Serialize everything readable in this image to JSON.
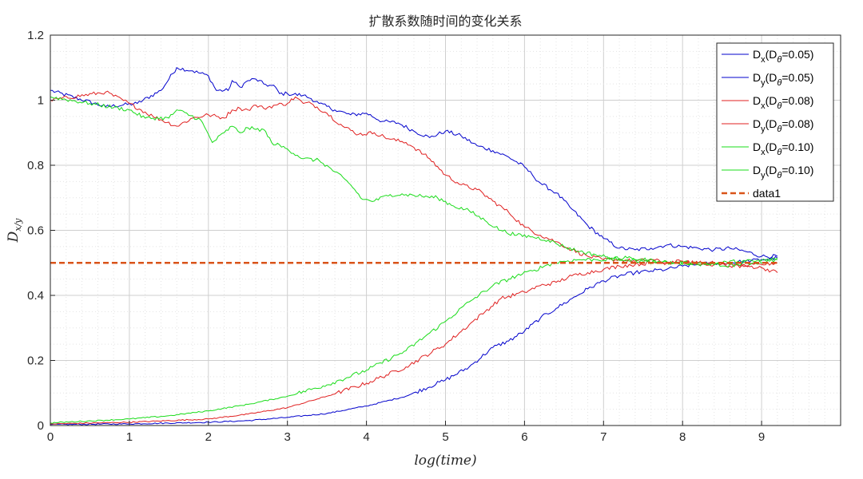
{
  "chart_data": {
    "type": "line",
    "title": "扩散系数随时间的变化关系",
    "xlabel": "log(time)",
    "ylabel": "D_{x/y}",
    "xlim": [
      0,
      10
    ],
    "ylim": [
      0,
      1.2
    ],
    "xticks": [
      0,
      1,
      2,
      3,
      4,
      5,
      6,
      7,
      8,
      9
    ],
    "yticks": [
      0,
      0.2,
      0.4,
      0.6,
      0.8,
      1,
      1.2
    ],
    "ytick_labels": [
      "0",
      "0.2",
      "0.4",
      "0.6",
      "0.8",
      "1",
      "1.2"
    ],
    "grid": true,
    "minor_grid": true,
    "legend_position": "top-right",
    "series": [
      {
        "name": "Dx(Dθ=0.05)",
        "label_main": "D",
        "label_sub": "x",
        "label_paren": "(D",
        "label_sub2": "θ",
        "label_rest": "=0.05)",
        "color": "#0000cc",
        "points": [
          [
            0,
            1.03
          ],
          [
            0.7,
            0.98
          ],
          [
            1.1,
            0.99
          ],
          [
            1.4,
            1.03
          ],
          [
            1.6,
            1.1
          ],
          [
            1.8,
            1.09
          ],
          [
            2.0,
            1.075
          ],
          [
            2.1,
            1.03
          ],
          [
            2.25,
            1.03
          ],
          [
            2.3,
            1.06
          ],
          [
            2.4,
            1.04
          ],
          [
            2.5,
            1.06
          ],
          [
            2.6,
            1.065
          ],
          [
            2.7,
            1.05
          ],
          [
            2.85,
            1.04
          ],
          [
            2.9,
            1.02
          ],
          [
            3.0,
            1.02
          ],
          [
            3.2,
            1.015
          ],
          [
            3.3,
            1.005
          ],
          [
            3.4,
            0.99
          ],
          [
            3.6,
            0.97
          ],
          [
            3.8,
            0.955
          ],
          [
            4.0,
            0.96
          ],
          [
            4.2,
            0.935
          ],
          [
            4.4,
            0.93
          ],
          [
            4.6,
            0.905
          ],
          [
            4.8,
            0.885
          ],
          [
            5.0,
            0.905
          ],
          [
            5.2,
            0.89
          ],
          [
            5.4,
            0.86
          ],
          [
            5.6,
            0.845
          ],
          [
            5.8,
            0.825
          ],
          [
            6.0,
            0.795
          ],
          [
            6.1,
            0.77
          ],
          [
            6.2,
            0.745
          ],
          [
            6.4,
            0.715
          ],
          [
            6.6,
            0.665
          ],
          [
            6.8,
            0.615
          ],
          [
            7.0,
            0.575
          ],
          [
            7.2,
            0.545
          ],
          [
            7.4,
            0.54
          ],
          [
            7.6,
            0.545
          ],
          [
            7.8,
            0.555
          ],
          [
            8.0,
            0.55
          ],
          [
            8.2,
            0.545
          ],
          [
            8.4,
            0.54
          ],
          [
            8.6,
            0.545
          ],
          [
            8.8,
            0.535
          ],
          [
            9.0,
            0.52
          ],
          [
            9.2,
            0.52
          ]
        ]
      },
      {
        "name": "Dy(Dθ=0.05)",
        "label_main": "D",
        "label_sub": "y",
        "label_paren": "(D",
        "label_sub2": "θ",
        "label_rest": "=0.05)",
        "color": "#0000cc",
        "points": [
          [
            0,
            0.003
          ],
          [
            1,
            0.005
          ],
          [
            2,
            0.01
          ],
          [
            2.5,
            0.015
          ],
          [
            3,
            0.025
          ],
          [
            3.5,
            0.037
          ],
          [
            4,
            0.06
          ],
          [
            4.5,
            0.09
          ],
          [
            5,
            0.14
          ],
          [
            5.3,
            0.18
          ],
          [
            5.6,
            0.24
          ],
          [
            5.8,
            0.26
          ],
          [
            6.0,
            0.29
          ],
          [
            6.2,
            0.33
          ],
          [
            6.4,
            0.36
          ],
          [
            6.6,
            0.39
          ],
          [
            6.8,
            0.42
          ],
          [
            7.0,
            0.445
          ],
          [
            7.2,
            0.46
          ],
          [
            7.4,
            0.47
          ],
          [
            7.6,
            0.475
          ],
          [
            7.8,
            0.48
          ],
          [
            8.0,
            0.49
          ],
          [
            8.2,
            0.495
          ],
          [
            8.4,
            0.5
          ],
          [
            8.6,
            0.5
          ],
          [
            8.8,
            0.505
          ],
          [
            9.0,
            0.51
          ],
          [
            9.2,
            0.515
          ]
        ]
      },
      {
        "name": "Dx(Dθ=0.08)",
        "label_main": "D",
        "label_sub": "x",
        "label_paren": "(D",
        "label_sub2": "θ",
        "label_rest": "=0.08)",
        "color": "#e02020",
        "points": [
          [
            0,
            1.0
          ],
          [
            0.7,
            1.025
          ],
          [
            1.0,
            0.99
          ],
          [
            1.3,
            0.95
          ],
          [
            1.6,
            0.92
          ],
          [
            1.8,
            0.945
          ],
          [
            2.0,
            0.955
          ],
          [
            2.2,
            0.945
          ],
          [
            2.3,
            0.97
          ],
          [
            2.4,
            0.975
          ],
          [
            2.5,
            0.97
          ],
          [
            2.6,
            0.985
          ],
          [
            2.7,
            0.975
          ],
          [
            2.85,
            0.985
          ],
          [
            3.0,
            0.99
          ],
          [
            3.1,
            1.01
          ],
          [
            3.2,
            0.99
          ],
          [
            3.3,
            0.99
          ],
          [
            3.5,
            0.96
          ],
          [
            3.7,
            0.92
          ],
          [
            3.9,
            0.895
          ],
          [
            4.1,
            0.9
          ],
          [
            4.3,
            0.88
          ],
          [
            4.5,
            0.87
          ],
          [
            4.6,
            0.855
          ],
          [
            4.8,
            0.82
          ],
          [
            5.0,
            0.77
          ],
          [
            5.2,
            0.74
          ],
          [
            5.4,
            0.725
          ],
          [
            5.6,
            0.69
          ],
          [
            5.8,
            0.655
          ],
          [
            6.0,
            0.61
          ],
          [
            6.2,
            0.585
          ],
          [
            6.4,
            0.565
          ],
          [
            6.6,
            0.54
          ],
          [
            6.8,
            0.52
          ],
          [
            7.0,
            0.51
          ],
          [
            7.2,
            0.51
          ],
          [
            7.4,
            0.505
          ],
          [
            7.6,
            0.51
          ],
          [
            7.8,
            0.5
          ],
          [
            8.0,
            0.505
          ],
          [
            8.2,
            0.495
          ],
          [
            8.4,
            0.5
          ],
          [
            8.6,
            0.495
          ],
          [
            8.8,
            0.49
          ],
          [
            9.0,
            0.485
          ],
          [
            9.2,
            0.47
          ]
        ]
      },
      {
        "name": "Dy(Dθ=0.08)",
        "label_main": "D",
        "label_sub": "y",
        "label_paren": "(D",
        "label_sub2": "θ",
        "label_rest": "=0.08)",
        "color": "#e02020",
        "points": [
          [
            0,
            0.005
          ],
          [
            1,
            0.01
          ],
          [
            2,
            0.02
          ],
          [
            2.5,
            0.035
          ],
          [
            3,
            0.055
          ],
          [
            3.5,
            0.09
          ],
          [
            4,
            0.13
          ],
          [
            4.5,
            0.18
          ],
          [
            5,
            0.25
          ],
          [
            5.3,
            0.31
          ],
          [
            5.5,
            0.35
          ],
          [
            5.7,
            0.39
          ],
          [
            6.0,
            0.41
          ],
          [
            6.2,
            0.43
          ],
          [
            6.4,
            0.44
          ],
          [
            6.6,
            0.46
          ],
          [
            6.8,
            0.47
          ],
          [
            7.0,
            0.48
          ],
          [
            7.2,
            0.49
          ],
          [
            7.4,
            0.495
          ],
          [
            7.6,
            0.5
          ],
          [
            7.8,
            0.5
          ],
          [
            8.0,
            0.505
          ],
          [
            8.2,
            0.5
          ],
          [
            8.4,
            0.495
          ],
          [
            8.6,
            0.49
          ],
          [
            8.8,
            0.49
          ],
          [
            9.0,
            0.495
          ],
          [
            9.2,
            0.5
          ]
        ]
      },
      {
        "name": "Dx(Dθ=0.10)",
        "label_main": "D",
        "label_sub": "x",
        "label_paren": "(D",
        "label_sub2": "θ",
        "label_rest": "=0.10)",
        "color": "#1adc1a",
        "points": [
          [
            0,
            1.01
          ],
          [
            0.5,
            0.99
          ],
          [
            1.0,
            0.97
          ],
          [
            1.2,
            0.945
          ],
          [
            1.5,
            0.945
          ],
          [
            1.6,
            0.97
          ],
          [
            1.9,
            0.94
          ],
          [
            2.05,
            0.87
          ],
          [
            2.2,
            0.9
          ],
          [
            2.3,
            0.92
          ],
          [
            2.4,
            0.9
          ],
          [
            2.5,
            0.915
          ],
          [
            2.6,
            0.91
          ],
          [
            2.7,
            0.91
          ],
          [
            2.8,
            0.87
          ],
          [
            3.0,
            0.85
          ],
          [
            3.2,
            0.82
          ],
          [
            3.4,
            0.815
          ],
          [
            3.6,
            0.78
          ],
          [
            3.8,
            0.74
          ],
          [
            3.95,
            0.695
          ],
          [
            4.1,
            0.69
          ],
          [
            4.3,
            0.71
          ],
          [
            4.5,
            0.71
          ],
          [
            4.7,
            0.705
          ],
          [
            4.9,
            0.7
          ],
          [
            5.1,
            0.675
          ],
          [
            5.3,
            0.66
          ],
          [
            5.5,
            0.63
          ],
          [
            5.7,
            0.6
          ],
          [
            5.9,
            0.585
          ],
          [
            6.1,
            0.58
          ],
          [
            6.3,
            0.57
          ],
          [
            6.5,
            0.55
          ],
          [
            6.7,
            0.535
          ],
          [
            6.9,
            0.525
          ],
          [
            7.1,
            0.515
          ],
          [
            7.3,
            0.51
          ],
          [
            7.5,
            0.505
          ],
          [
            7.7,
            0.5
          ],
          [
            7.9,
            0.5
          ],
          [
            8.1,
            0.495
          ],
          [
            8.3,
            0.5
          ],
          [
            8.5,
            0.49
          ],
          [
            8.7,
            0.495
          ],
          [
            8.9,
            0.5
          ],
          [
            9.1,
            0.505
          ],
          [
            9.2,
            0.51
          ]
        ]
      },
      {
        "name": "Dy(Dθ=0.10)",
        "label_main": "D",
        "label_sub": "y",
        "label_paren": "(D",
        "label_sub2": "θ",
        "label_rest": "=0.10)",
        "color": "#1adc1a",
        "points": [
          [
            0,
            0.008
          ],
          [
            1,
            0.02
          ],
          [
            1.5,
            0.03
          ],
          [
            2,
            0.045
          ],
          [
            2.5,
            0.065
          ],
          [
            3,
            0.09
          ],
          [
            3.5,
            0.125
          ],
          [
            4,
            0.17
          ],
          [
            4.5,
            0.23
          ],
          [
            5,
            0.32
          ],
          [
            5.3,
            0.38
          ],
          [
            5.6,
            0.43
          ],
          [
            5.9,
            0.46
          ],
          [
            6.1,
            0.475
          ],
          [
            6.3,
            0.495
          ],
          [
            6.5,
            0.505
          ],
          [
            6.7,
            0.51
          ],
          [
            6.9,
            0.51
          ],
          [
            7.1,
            0.51
          ],
          [
            7.3,
            0.515
          ],
          [
            7.5,
            0.51
          ],
          [
            7.7,
            0.505
          ],
          [
            7.9,
            0.5
          ],
          [
            8.1,
            0.5
          ],
          [
            8.3,
            0.495
          ],
          [
            8.5,
            0.5
          ],
          [
            8.7,
            0.505
          ],
          [
            8.9,
            0.505
          ],
          [
            9.1,
            0.51
          ],
          [
            9.2,
            0.515
          ]
        ]
      },
      {
        "name": "data1",
        "label_main": "data1",
        "color": "#d95319",
        "dashed": true,
        "points": [
          [
            0,
            0.5
          ],
          [
            9.2,
            0.5
          ]
        ]
      }
    ]
  }
}
